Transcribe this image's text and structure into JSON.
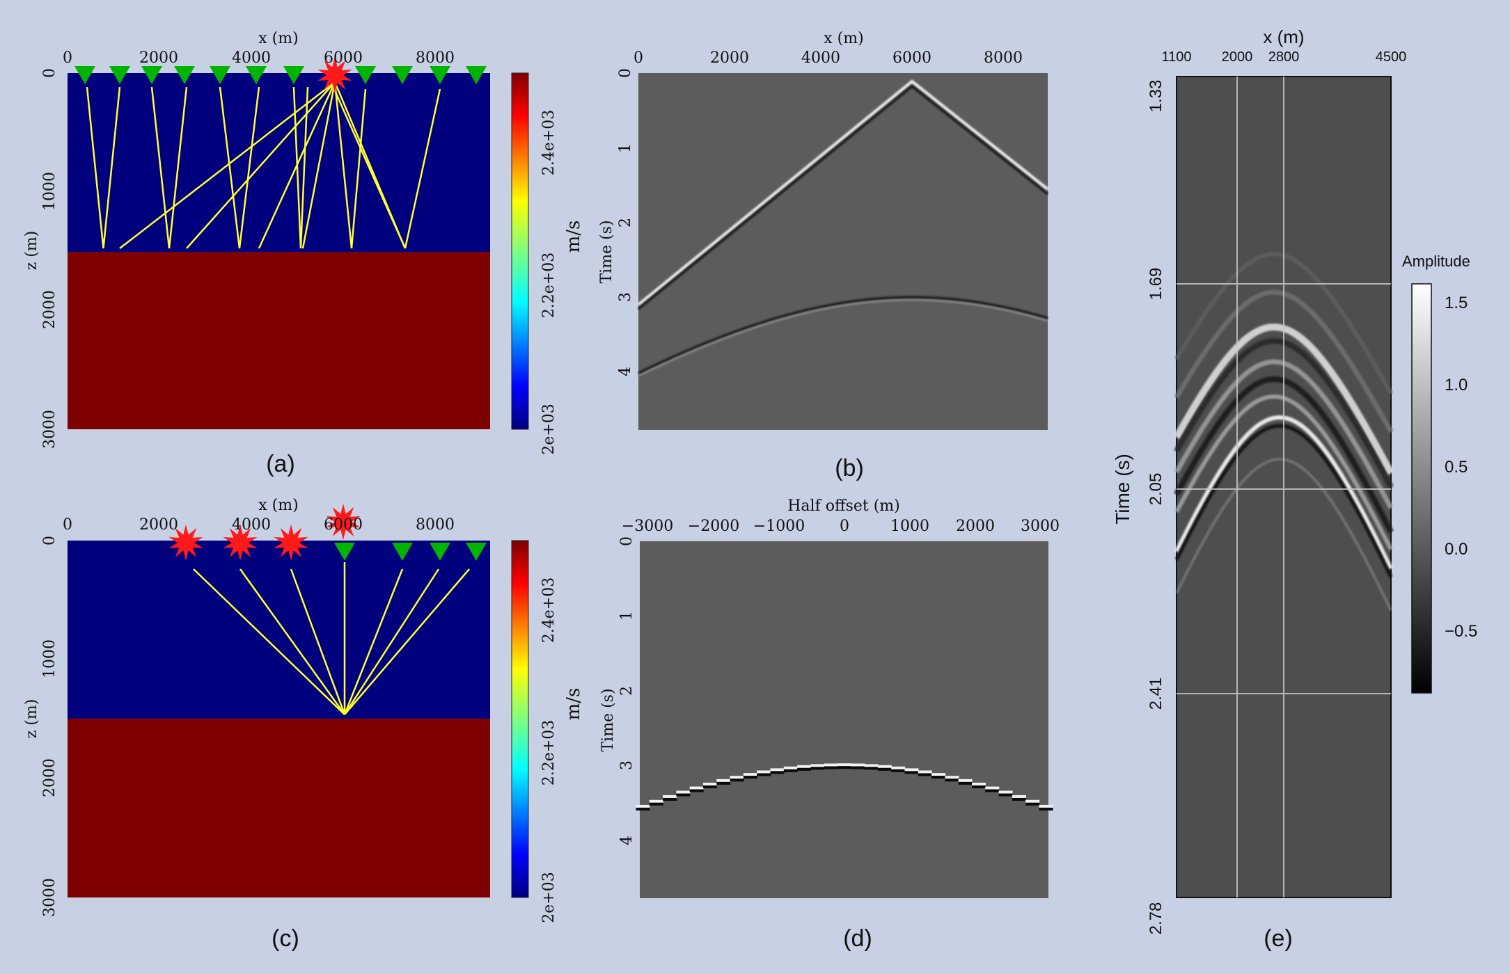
{
  "figure": {
    "panel_a": {
      "caption": "(a)",
      "x_label": "x (m)",
      "z_label": "z (m)",
      "x_ticks": [
        "0",
        "2000",
        "4000",
        "6000",
        "8000"
      ],
      "z_ticks": [
        "0",
        "1000",
        "2000",
        "3000"
      ],
      "colorbar_label": "m/s",
      "colorbar_ticks": [
        "2e+03",
        "2.2e+03",
        "2.4e+03"
      ],
      "colors": {
        "upper_layer": "#00007f",
        "lower_layer": "#7f0000",
        "receiver": "#00b400",
        "source": "#ff1a1a",
        "ray": "#ffff33"
      }
    },
    "panel_b": {
      "caption": "(b)",
      "x_label": "x (m)",
      "y_label": "Time (s)",
      "x_ticks": [
        "0",
        "2000",
        "4000",
        "6000",
        "8000"
      ],
      "y_ticks": [
        "0",
        "1",
        "2",
        "3",
        "4"
      ]
    },
    "panel_c": {
      "caption": "(c)",
      "x_label": "x (m)",
      "z_label": "z (m)",
      "x_ticks": [
        "0",
        "2000",
        "4000",
        "6000",
        "8000"
      ],
      "z_ticks": [
        "0",
        "1000",
        "2000",
        "3000"
      ],
      "colorbar_label": "m/s",
      "colorbar_ticks": [
        "2e+03",
        "2.2e+03",
        "2.4e+03"
      ]
    },
    "panel_d": {
      "caption": "(d)",
      "x_label": "Half offset (m)",
      "y_label": "Time (s)",
      "x_ticks": [
        "−3000",
        "−2000",
        "−1000",
        "0",
        "1000",
        "2000",
        "3000"
      ],
      "y_ticks": [
        "0",
        "1",
        "2",
        "3",
        "4"
      ]
    },
    "panel_e": {
      "caption": "(e)",
      "x_label": "x (m)",
      "y_label": "Time (s)",
      "x_ticks": [
        "1100",
        "2000",
        "2800",
        "4500"
      ],
      "y_ticks": [
        "1.33",
        "1.69",
        "2.05",
        "2.41",
        "2.78"
      ],
      "colorbar_title": "Amplitude",
      "colorbar_ticks": [
        "1.5",
        "1.0",
        "0.5",
        "0.0",
        "−0.5"
      ]
    }
  }
}
